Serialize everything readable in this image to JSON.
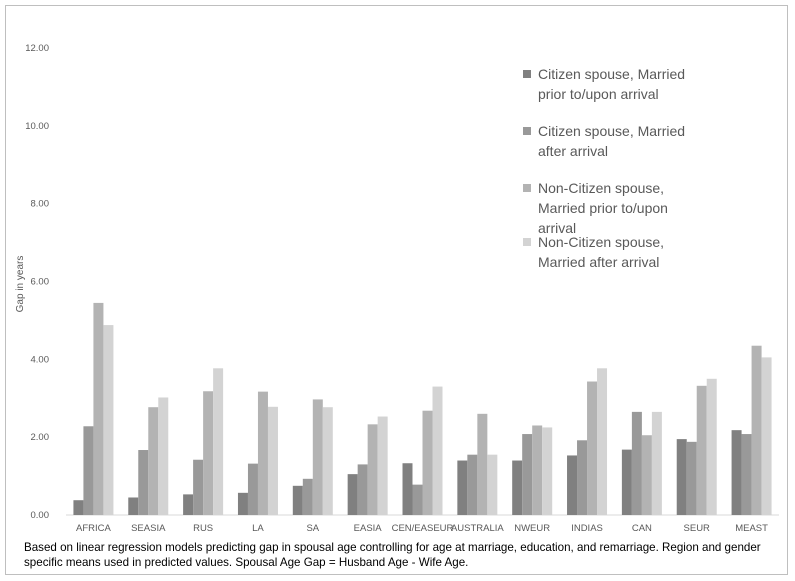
{
  "chart_data": {
    "type": "bar",
    "title": "",
    "xlabel": "",
    "ylabel": "Gap in years",
    "ylim": [
      0,
      12
    ],
    "yticks": [
      "0.00",
      "2.00",
      "4.00",
      "6.00",
      "8.00",
      "10.00",
      "12.00"
    ],
    "grid": false,
    "legend_position": "top-right",
    "categories": [
      "AFRICA",
      "SEASIA",
      "RUS",
      "LA",
      "SA",
      "EASIA",
      "CEN/EASEUR",
      "AUSTRALIA",
      "NWEUR",
      "INDIAS",
      "CAN",
      "SEUR",
      "MEAST"
    ],
    "series": [
      {
        "name": "Citizen spouse, Married prior to/upon arrival",
        "legend_lines": [
          "Citizen spouse, Married",
          "prior to/upon arrival"
        ],
        "color": "#808080",
        "values": [
          0.38,
          0.45,
          0.53,
          0.57,
          0.75,
          1.05,
          1.33,
          1.4,
          1.4,
          1.53,
          1.68,
          1.95,
          2.18
        ]
      },
      {
        "name": "Citizen spouse, Married after arrival",
        "legend_lines": [
          "Citizen spouse, Married",
          "after arrival"
        ],
        "color": "#999999",
        "values": [
          2.28,
          1.67,
          1.42,
          1.32,
          0.93,
          1.3,
          0.78,
          1.55,
          2.08,
          1.92,
          2.65,
          1.88,
          2.08
        ]
      },
      {
        "name": "Non-Citizen spouse, Married prior to/upon arrival",
        "legend_lines": [
          "Non-Citizen spouse,",
          "Married prior to/upon",
          "arrival"
        ],
        "color": "#b3b3b3",
        "values": [
          5.45,
          2.77,
          3.18,
          3.17,
          2.97,
          2.33,
          2.68,
          2.6,
          2.3,
          3.43,
          2.05,
          3.32,
          4.35
        ]
      },
      {
        "name": "Non-Citizen spouse, Married after arrival",
        "legend_lines": [
          "Non-Citizen spouse,",
          "Married after arrival"
        ],
        "color": "#d3d3d3",
        "values": [
          4.88,
          3.02,
          3.77,
          2.78,
          2.77,
          2.53,
          3.3,
          1.55,
          2.25,
          3.77,
          2.65,
          3.5,
          4.05
        ]
      }
    ]
  },
  "caption": "Based on linear regression models predicting gap in spousal age controlling for age at marriage, education, and remarriage. Region and gender specific means used in predicted values.  Spousal Age Gap = Husband Age - Wife Age."
}
